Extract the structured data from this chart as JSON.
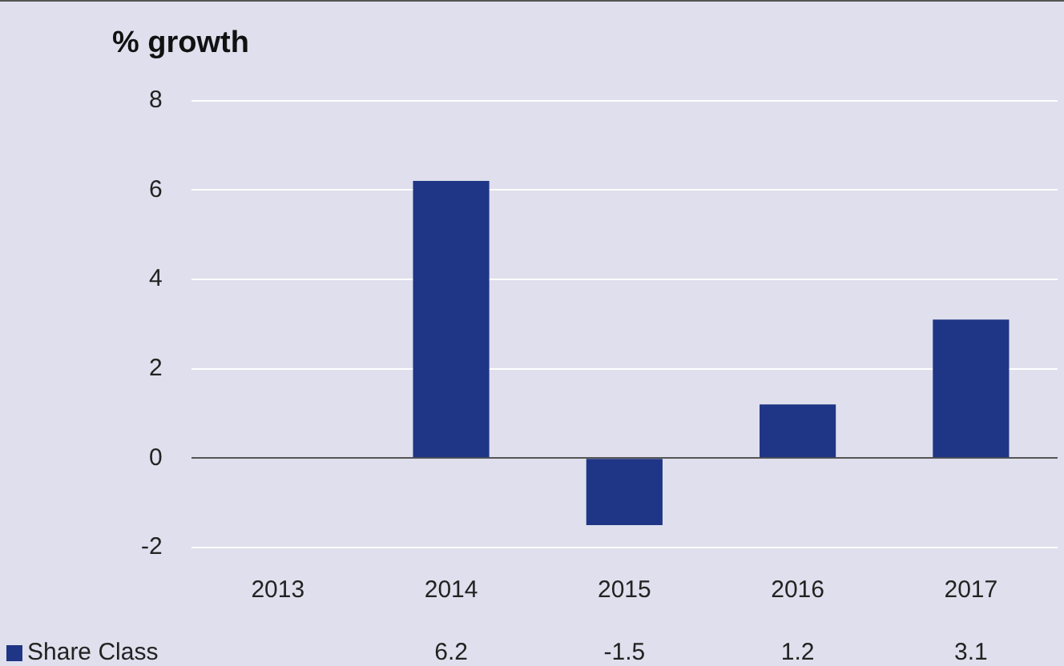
{
  "chart_data": {
    "type": "bar",
    "title": "% growth",
    "categories": [
      "2013",
      "2014",
      "2015",
      "2016",
      "2017"
    ],
    "series": [
      {
        "name": "Share Class",
        "color": "#1f3585",
        "values": [
          0,
          6.2,
          -1.5,
          1.2,
          3.1
        ],
        "value_labels": [
          null,
          "6.2",
          "-1.5",
          "1.2",
          "3.1"
        ]
      }
    ],
    "ylim": [
      -2,
      8
    ],
    "yticks": [
      -2,
      0,
      2,
      4,
      6,
      8
    ],
    "grid": "y",
    "legend": "bottom left"
  }
}
